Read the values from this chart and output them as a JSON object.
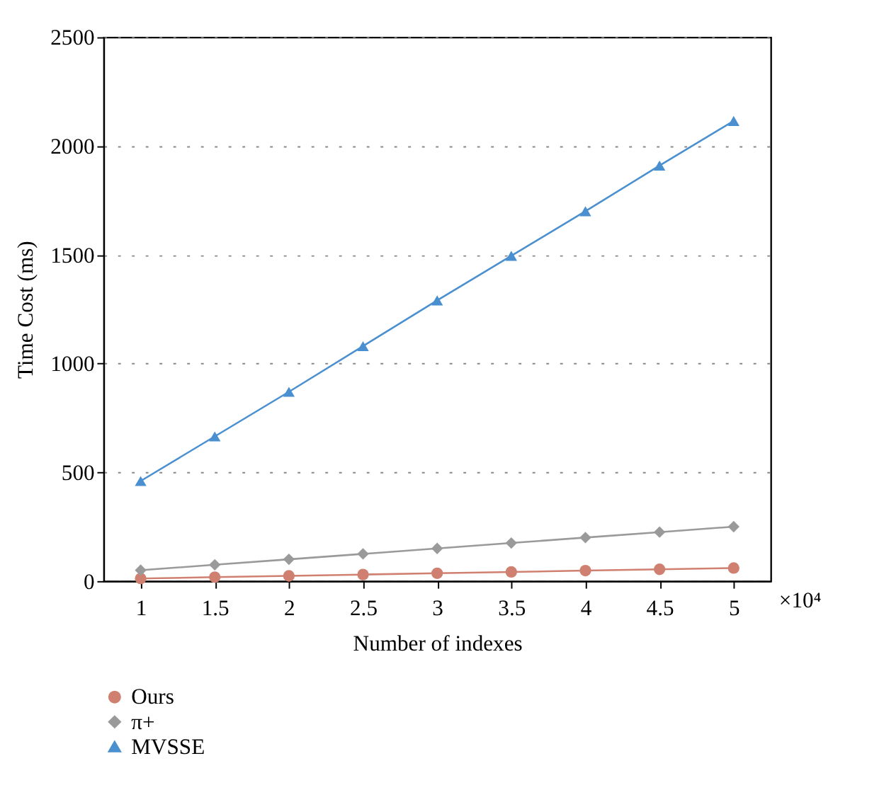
{
  "chart_data": {
    "type": "line",
    "xlabel": "Number of indexes",
    "ylabel": "Time Cost (ms)",
    "x": [
      1,
      1.5,
      2,
      2.5,
      3,
      3.5,
      4,
      4.5,
      5
    ],
    "xlim": [
      0.75,
      5.25
    ],
    "xticks": [
      1,
      1.5,
      2,
      2.5,
      3,
      3.5,
      4,
      4.5,
      5
    ],
    "ylim": [
      0,
      2500
    ],
    "yticks": [
      0,
      500,
      1000,
      1500,
      2000,
      2500
    ],
    "grid": "y",
    "legend": "bottom left",
    "annotations": [
      "×10⁴"
    ],
    "series": [
      {
        "name": "Ours",
        "color": "#d08070",
        "marker": "circle",
        "values": [
          12,
          18,
          24,
          30,
          36,
          42,
          48,
          54,
          60
        ]
      },
      {
        "name": "π+",
        "color": "#9a9a9a",
        "marker": "diamond",
        "values": [
          50,
          75,
          100,
          125,
          150,
          175,
          200,
          225,
          250
        ]
      },
      {
        "name": "MVSSE",
        "color": "#4a90d0",
        "marker": "triangle",
        "values": [
          460,
          665,
          870,
          1080,
          1290,
          1495,
          1700,
          1910,
          2115
        ]
      }
    ]
  }
}
